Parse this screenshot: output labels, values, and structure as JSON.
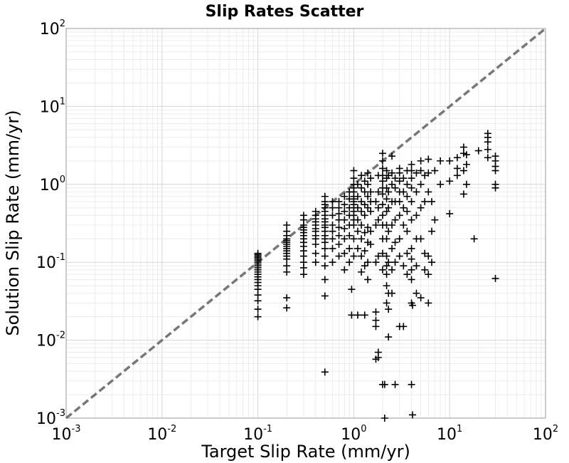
{
  "chart_data": {
    "type": "scatter",
    "title": "Slip Rates Scatter",
    "xlabel": "Target Slip Rate (mm/yr)",
    "ylabel": "Solution Slip Rate (mm/yr)",
    "xscale": "log",
    "yscale": "log",
    "xlim": [
      0.001,
      100
    ],
    "ylim": [
      0.001,
      100
    ],
    "grid": true,
    "marker": "plus",
    "marker_color": "#000000",
    "reference_line": {
      "style": "dashed",
      "color": "#777777",
      "from": [
        0.001,
        0.001
      ],
      "to": [
        100,
        100
      ]
    },
    "x_ticks": [
      {
        "base": "10",
        "exp": "-3"
      },
      {
        "base": "10",
        "exp": "-2"
      },
      {
        "base": "10",
        "exp": "-1"
      },
      {
        "base": "10",
        "exp": "0"
      },
      {
        "base": "10",
        "exp": "1"
      },
      {
        "base": "10",
        "exp": "2"
      }
    ],
    "y_ticks": [
      {
        "base": "10",
        "exp": "-3"
      },
      {
        "base": "10",
        "exp": "-2"
      },
      {
        "base": "10",
        "exp": "-1"
      },
      {
        "base": "10",
        "exp": "0"
      },
      {
        "base": "10",
        "exp": "1"
      },
      {
        "base": "10",
        "exp": "2"
      }
    ],
    "points": [
      [
        0.1,
        0.02
      ],
      [
        0.1,
        0.025
      ],
      [
        0.1,
        0.032
      ],
      [
        0.1,
        0.038
      ],
      [
        0.1,
        0.045
      ],
      [
        0.1,
        0.05
      ],
      [
        0.1,
        0.055
      ],
      [
        0.1,
        0.06
      ],
      [
        0.1,
        0.065
      ],
      [
        0.1,
        0.07
      ],
      [
        0.1,
        0.075
      ],
      [
        0.1,
        0.08
      ],
      [
        0.1,
        0.085
      ],
      [
        0.1,
        0.09
      ],
      [
        0.1,
        0.095
      ],
      [
        0.1,
        0.1
      ],
      [
        0.1,
        0.105
      ],
      [
        0.1,
        0.11
      ],
      [
        0.1,
        0.115
      ],
      [
        0.1,
        0.12
      ],
      [
        0.1,
        0.125
      ],
      [
        0.1,
        0.13
      ],
      [
        0.2,
        0.026
      ],
      [
        0.2,
        0.035
      ],
      [
        0.2,
        0.075
      ],
      [
        0.2,
        0.09
      ],
      [
        0.2,
        0.11
      ],
      [
        0.2,
        0.12
      ],
      [
        0.2,
        0.13
      ],
      [
        0.2,
        0.14
      ],
      [
        0.2,
        0.15
      ],
      [
        0.2,
        0.16
      ],
      [
        0.2,
        0.17
      ],
      [
        0.2,
        0.18
      ],
      [
        0.2,
        0.19
      ],
      [
        0.2,
        0.2
      ],
      [
        0.2,
        0.22
      ],
      [
        0.2,
        0.25
      ],
      [
        0.2,
        0.3
      ],
      [
        0.3,
        0.07
      ],
      [
        0.3,
        0.085
      ],
      [
        0.3,
        0.1
      ],
      [
        0.3,
        0.12
      ],
      [
        0.3,
        0.14
      ],
      [
        0.3,
        0.16
      ],
      [
        0.3,
        0.18
      ],
      [
        0.3,
        0.2
      ],
      [
        0.3,
        0.22
      ],
      [
        0.3,
        0.24
      ],
      [
        0.3,
        0.26
      ],
      [
        0.3,
        0.28
      ],
      [
        0.3,
        0.3
      ],
      [
        0.3,
        0.35
      ],
      [
        0.3,
        0.4
      ],
      [
        0.4,
        0.1
      ],
      [
        0.4,
        0.13
      ],
      [
        0.4,
        0.17
      ],
      [
        0.4,
        0.2
      ],
      [
        0.4,
        0.22
      ],
      [
        0.4,
        0.25
      ],
      [
        0.4,
        0.27
      ],
      [
        0.4,
        0.3
      ],
      [
        0.4,
        0.33
      ],
      [
        0.4,
        0.36
      ],
      [
        0.4,
        0.4
      ],
      [
        0.4,
        0.45
      ],
      [
        0.5,
        0.0039
      ],
      [
        0.5,
        0.037
      ],
      [
        0.5,
        0.06
      ],
      [
        0.5,
        0.09
      ],
      [
        0.5,
        0.12
      ],
      [
        0.5,
        0.15
      ],
      [
        0.5,
        0.18
      ],
      [
        0.5,
        0.2
      ],
      [
        0.5,
        0.22
      ],
      [
        0.5,
        0.25
      ],
      [
        0.5,
        0.28
      ],
      [
        0.5,
        0.3
      ],
      [
        0.5,
        0.33
      ],
      [
        0.5,
        0.36
      ],
      [
        0.5,
        0.4
      ],
      [
        0.5,
        0.45
      ],
      [
        0.5,
        0.5
      ],
      [
        0.5,
        0.55
      ],
      [
        0.5,
        0.6
      ],
      [
        0.5,
        0.7
      ],
      [
        0.6,
        0.1
      ],
      [
        0.6,
        0.15
      ],
      [
        0.6,
        0.2
      ],
      [
        0.6,
        0.25
      ],
      [
        0.6,
        0.3
      ],
      [
        0.6,
        0.4
      ],
      [
        0.6,
        0.5
      ],
      [
        0.6,
        0.6
      ],
      [
        0.7,
        0.12
      ],
      [
        0.7,
        0.17
      ],
      [
        0.7,
        0.22
      ],
      [
        0.7,
        0.28
      ],
      [
        0.7,
        0.35
      ],
      [
        0.7,
        0.42
      ],
      [
        0.7,
        0.5
      ],
      [
        0.7,
        0.6
      ],
      [
        0.8,
        0.08
      ],
      [
        0.8,
        0.13
      ],
      [
        0.8,
        0.2
      ],
      [
        0.8,
        0.27
      ],
      [
        0.8,
        0.35
      ],
      [
        0.8,
        0.45
      ],
      [
        0.8,
        0.55
      ],
      [
        0.8,
        0.7
      ],
      [
        0.9,
        0.1
      ],
      [
        0.9,
        0.15
      ],
      [
        0.9,
        0.22
      ],
      [
        0.9,
        0.3
      ],
      [
        0.9,
        0.4
      ],
      [
        0.9,
        0.5
      ],
      [
        0.9,
        0.65
      ],
      [
        0.9,
        0.8
      ],
      [
        0.95,
        0.045
      ],
      [
        0.95,
        0.021
      ],
      [
        1.0,
        0.12
      ],
      [
        1.0,
        0.2
      ],
      [
        1.0,
        0.3
      ],
      [
        1.0,
        0.35
      ],
      [
        1.0,
        0.4
      ],
      [
        1.0,
        0.45
      ],
      [
        1.0,
        0.5
      ],
      [
        1.0,
        0.55
      ],
      [
        1.0,
        0.6
      ],
      [
        1.0,
        0.65
      ],
      [
        1.0,
        0.7
      ],
      [
        1.0,
        0.8
      ],
      [
        1.0,
        0.9
      ],
      [
        1.0,
        1.0
      ],
      [
        1.0,
        1.2
      ],
      [
        1.0,
        1.5
      ],
      [
        1.1,
        0.021
      ],
      [
        1.1,
        0.15
      ],
      [
        1.1,
        0.25
      ],
      [
        1.1,
        0.35
      ],
      [
        1.1,
        0.5
      ],
      [
        1.1,
        0.7
      ],
      [
        1.1,
        1.0
      ],
      [
        1.2,
        0.075
      ],
      [
        1.2,
        0.12
      ],
      [
        1.2,
        0.2
      ],
      [
        1.2,
        0.3
      ],
      [
        1.2,
        0.45
      ],
      [
        1.2,
        0.6
      ],
      [
        1.2,
        0.9
      ],
      [
        1.2,
        1.3
      ],
      [
        1.3,
        0.021
      ],
      [
        1.3,
        0.09
      ],
      [
        1.3,
        0.14
      ],
      [
        1.3,
        0.24
      ],
      [
        1.3,
        0.4
      ],
      [
        1.3,
        0.55
      ],
      [
        1.3,
        0.8
      ],
      [
        1.3,
        1.1
      ],
      [
        1.4,
        0.06
      ],
      [
        1.4,
        0.1
      ],
      [
        1.4,
        0.18
      ],
      [
        1.4,
        0.28
      ],
      [
        1.4,
        0.5
      ],
      [
        1.4,
        0.7
      ],
      [
        1.4,
        1.0
      ],
      [
        1.4,
        1.4
      ],
      [
        1.5,
        0.17
      ],
      [
        1.5,
        0.25
      ],
      [
        1.5,
        0.45
      ],
      [
        1.5,
        0.6
      ],
      [
        1.5,
        0.8
      ],
      [
        1.5,
        1.2
      ],
      [
        1.7,
        0.0057
      ],
      [
        1.7,
        0.015
      ],
      [
        1.7,
        0.018
      ],
      [
        1.7,
        0.023
      ],
      [
        1.7,
        0.1
      ],
      [
        1.7,
        0.3
      ],
      [
        1.7,
        0.6
      ],
      [
        1.8,
        0.006
      ],
      [
        1.8,
        0.007
      ],
      [
        1.8,
        0.12
      ],
      [
        1.8,
        0.35
      ],
      [
        1.8,
        0.5
      ],
      [
        1.8,
        0.8
      ],
      [
        1.8,
        1.3
      ],
      [
        2.0,
        0.0027
      ],
      [
        2.0,
        0.08
      ],
      [
        2.0,
        0.13
      ],
      [
        2.0,
        0.2
      ],
      [
        2.0,
        0.3
      ],
      [
        2.0,
        0.4
      ],
      [
        2.0,
        0.55
      ],
      [
        2.0,
        0.75
      ],
      [
        2.0,
        0.9
      ],
      [
        2.0,
        1.1
      ],
      [
        2.0,
        1.3
      ],
      [
        2.0,
        1.6
      ],
      [
        2.0,
        2.0
      ],
      [
        2.0,
        2.5
      ],
      [
        2.1,
        0.0027
      ],
      [
        2.1,
        0.001
      ],
      [
        2.2,
        0.03
      ],
      [
        2.2,
        0.05
      ],
      [
        2.2,
        0.07
      ],
      [
        2.2,
        0.09
      ],
      [
        2.2,
        0.12
      ],
      [
        2.2,
        0.2
      ],
      [
        2.2,
        0.3
      ],
      [
        2.2,
        0.45
      ],
      [
        2.2,
        0.65
      ],
      [
        2.2,
        0.9
      ],
      [
        2.2,
        1.2
      ],
      [
        2.2,
        1.5
      ],
      [
        2.3,
        0.011
      ],
      [
        2.3,
        0.025
      ],
      [
        2.3,
        0.04
      ],
      [
        2.3,
        0.1
      ],
      [
        2.3,
        0.25
      ],
      [
        2.3,
        0.5
      ],
      [
        2.3,
        0.8
      ],
      [
        2.3,
        1.3
      ],
      [
        2.5,
        0.04
      ],
      [
        2.5,
        0.08
      ],
      [
        2.5,
        0.15
      ],
      [
        2.5,
        0.3
      ],
      [
        2.5,
        0.6
      ],
      [
        2.5,
        1.0
      ],
      [
        2.5,
        1.4
      ],
      [
        2.5,
        2.3
      ],
      [
        2.7,
        0.0027
      ],
      [
        2.7,
        0.1
      ],
      [
        2.7,
        0.18
      ],
      [
        2.7,
        0.35
      ],
      [
        2.7,
        0.6
      ],
      [
        2.7,
        0.9
      ],
      [
        2.7,
        1.2
      ],
      [
        3.0,
        0.015
      ],
      [
        3.0,
        0.12
      ],
      [
        3.0,
        0.2
      ],
      [
        3.0,
        0.4
      ],
      [
        3.0,
        0.6
      ],
      [
        3.0,
        0.8
      ],
      [
        3.0,
        1.1
      ],
      [
        3.0,
        1.4
      ],
      [
        3.0,
        1.6
      ],
      [
        3.3,
        0.015
      ],
      [
        3.3,
        0.09
      ],
      [
        3.3,
        0.3
      ],
      [
        3.3,
        0.5
      ],
      [
        3.3,
        0.8
      ],
      [
        3.3,
        1.2
      ],
      [
        3.6,
        0.07
      ],
      [
        3.6,
        0.13
      ],
      [
        3.6,
        0.25
      ],
      [
        3.6,
        0.45
      ],
      [
        3.6,
        0.7
      ],
      [
        3.6,
        1.0
      ],
      [
        3.6,
        1.5
      ],
      [
        4.0,
        0.0027
      ],
      [
        4.0,
        0.03
      ],
      [
        4.0,
        0.06
      ],
      [
        4.0,
        0.08
      ],
      [
        4.0,
        0.11
      ],
      [
        4.0,
        0.15
      ],
      [
        4.0,
        0.35
      ],
      [
        4.0,
        0.6
      ],
      [
        4.0,
        0.9
      ],
      [
        4.0,
        1.2
      ],
      [
        4.0,
        1.5
      ],
      [
        4.0,
        1.8
      ],
      [
        4.1,
        0.0011
      ],
      [
        4.1,
        0.028
      ],
      [
        4.5,
        0.04
      ],
      [
        4.5,
        0.09
      ],
      [
        4.5,
        0.2
      ],
      [
        4.5,
        0.4
      ],
      [
        4.5,
        0.8
      ],
      [
        4.5,
        1.4
      ],
      [
        5.0,
        0.035
      ],
      [
        5.0,
        0.2
      ],
      [
        5.0,
        0.5
      ],
      [
        5.0,
        1.0
      ],
      [
        5.0,
        1.5
      ],
      [
        5.0,
        2.0
      ],
      [
        5.5,
        0.08
      ],
      [
        5.5,
        0.13
      ],
      [
        5.5,
        0.6
      ],
      [
        5.5,
        1.3
      ],
      [
        6.0,
        0.03
      ],
      [
        6.0,
        0.07
      ],
      [
        6.0,
        0.12
      ],
      [
        6.0,
        0.8
      ],
      [
        6.0,
        1.4
      ],
      [
        6.0,
        2.1
      ],
      [
        6.5,
        0.1
      ],
      [
        6.5,
        0.25
      ],
      [
        6.5,
        0.6
      ],
      [
        7.0,
        0.35
      ],
      [
        7.0,
        1.5
      ],
      [
        8.0,
        1.0
      ],
      [
        8.0,
        2.0
      ],
      [
        10.0,
        0.42
      ],
      [
        10.0,
        1.1
      ],
      [
        10.0,
        2.0
      ],
      [
        12.0,
        1.3
      ],
      [
        12.0,
        1.6
      ],
      [
        12.0,
        2.2
      ],
      [
        14.0,
        0.75
      ],
      [
        14.0,
        1.5
      ],
      [
        14.0,
        2.5
      ],
      [
        14.0,
        3.0
      ],
      [
        15.0,
        1.0
      ],
      [
        15.0,
        1.8
      ],
      [
        15.0,
        2.4
      ],
      [
        18.0,
        0.2
      ],
      [
        20.0,
        2.7
      ],
      [
        25.0,
        2.2
      ],
      [
        25.0,
        2.8
      ],
      [
        25.0,
        3.5
      ],
      [
        25.0,
        4.0
      ],
      [
        25.0,
        4.5
      ],
      [
        30.0,
        0.062
      ],
      [
        30.0,
        0.9
      ],
      [
        30.0,
        1.0
      ],
      [
        30.0,
        1.5
      ],
      [
        30.0,
        1.7
      ],
      [
        30.0,
        2.0
      ],
      [
        30.0,
        2.3
      ]
    ]
  }
}
